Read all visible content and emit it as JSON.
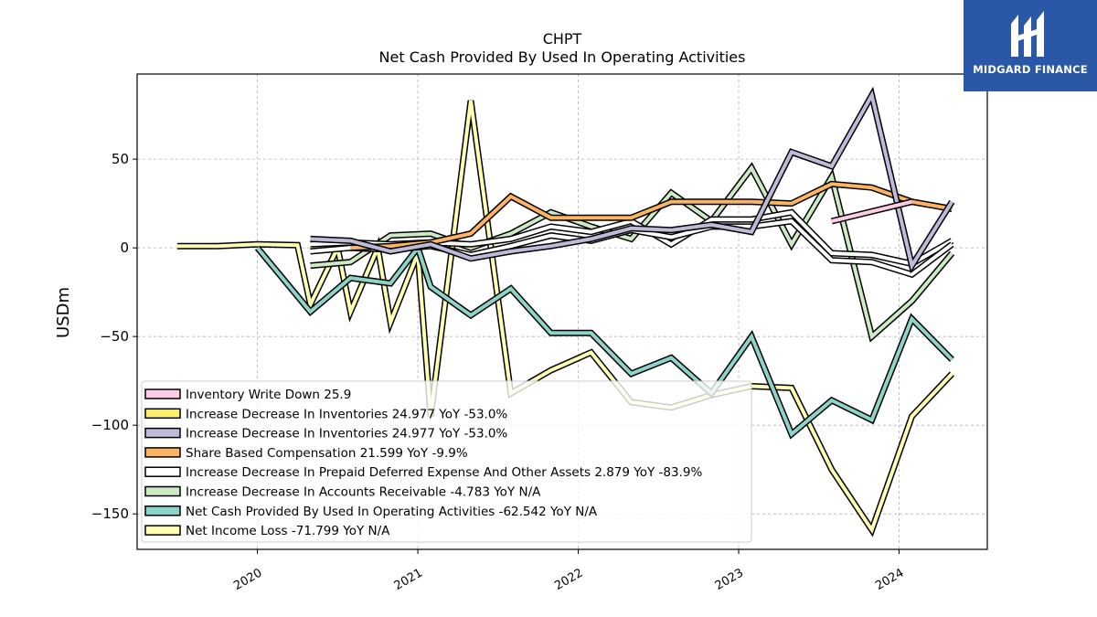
{
  "brand": {
    "name": "MIDGARD FINANCE",
    "background": "#2a57a6"
  },
  "chart_data": {
    "type": "line",
    "title": "CHPT",
    "subtitle": "Net Cash Provided By Used In Operating Activities",
    "xlabel": "",
    "ylabel": "USDm",
    "xlim": [
      2019.25,
      2024.55
    ],
    "ylim": [
      -170,
      98
    ],
    "x_ticks": [
      2020,
      2021,
      2022,
      2023,
      2024
    ],
    "x_tick_labels": [
      "2020",
      "2021",
      "2022",
      "2023",
      "2024"
    ],
    "y_ticks": [
      50,
      0,
      -50,
      -100,
      -150
    ],
    "y_tick_labels": [
      "50",
      "0",
      "−50",
      "−100",
      "−150"
    ],
    "grid": true,
    "legend_position": "lower-left",
    "series": [
      {
        "name": "Net Income Loss  -71.799 YoY N/A",
        "color": "#ffffb3",
        "points": [
          [
            2019.5,
            1
          ],
          [
            2019.75,
            1
          ],
          [
            2020.0,
            2
          ],
          [
            2020.25,
            1.5
          ],
          [
            2020.33,
            -32
          ],
          [
            2020.5,
            0
          ],
          [
            2020.58,
            -36
          ],
          [
            2020.75,
            0
          ],
          [
            2020.83,
            -42
          ],
          [
            2021.0,
            -3
          ],
          [
            2021.08,
            -95
          ],
          [
            2021.33,
            83
          ],
          [
            2021.58,
            -82
          ],
          [
            2021.83,
            -69
          ],
          [
            2022.08,
            -59
          ],
          [
            2022.33,
            -87
          ],
          [
            2022.58,
            -90
          ],
          [
            2022.83,
            -83
          ],
          [
            2023.08,
            -78
          ],
          [
            2023.33,
            -79
          ],
          [
            2023.58,
            -125
          ],
          [
            2023.83,
            -159
          ],
          [
            2024.08,
            -95
          ],
          [
            2024.33,
            -71
          ]
        ]
      },
      {
        "name": "Net Cash Provided By Used In Operating Activities  -62.542 YoY N/A",
        "color": "#8dd3c7",
        "points": [
          [
            2020.0,
            0
          ],
          [
            2020.33,
            -36
          ],
          [
            2020.58,
            -17
          ],
          [
            2020.83,
            -20
          ],
          [
            2021.0,
            0
          ],
          [
            2021.08,
            -22
          ],
          [
            2021.33,
            -38
          ],
          [
            2021.58,
            -23
          ],
          [
            2021.83,
            -48
          ],
          [
            2022.08,
            -48
          ],
          [
            2022.33,
            -71
          ],
          [
            2022.58,
            -62
          ],
          [
            2022.83,
            -82
          ],
          [
            2023.08,
            -50
          ],
          [
            2023.33,
            -105
          ],
          [
            2023.58,
            -86
          ],
          [
            2023.83,
            -97
          ],
          [
            2024.08,
            -40
          ],
          [
            2024.33,
            -63
          ]
        ]
      },
      {
        "name": "Increase Decrease In Accounts Receivable  -4.783 YoY N/A",
        "color": "#ccebc5",
        "points": [
          [
            2020.33,
            -10
          ],
          [
            2020.58,
            -8
          ],
          [
            2020.83,
            7
          ],
          [
            2021.08,
            8
          ],
          [
            2021.33,
            0
          ],
          [
            2021.58,
            8
          ],
          [
            2021.83,
            20
          ],
          [
            2022.08,
            12
          ],
          [
            2022.33,
            5
          ],
          [
            2022.58,
            31
          ],
          [
            2022.83,
            15
          ],
          [
            2023.08,
            45
          ],
          [
            2023.33,
            2
          ],
          [
            2023.58,
            40
          ],
          [
            2023.83,
            -50
          ],
          [
            2024.08,
            -30
          ],
          [
            2024.33,
            -3
          ]
        ]
      },
      {
        "name": "Increase Decrease In Prepaid Deferred Expense And Other Assets  2.879 YoY -83.9%",
        "color": "#ffffff",
        "points": [
          [
            2020.33,
            2
          ],
          [
            2020.58,
            3
          ],
          [
            2020.83,
            2
          ],
          [
            2021.08,
            3
          ],
          [
            2021.33,
            2
          ],
          [
            2021.58,
            5
          ],
          [
            2021.83,
            12
          ],
          [
            2022.08,
            9
          ],
          [
            2022.33,
            15
          ],
          [
            2022.58,
            2
          ],
          [
            2022.83,
            16
          ],
          [
            2023.08,
            16
          ],
          [
            2023.33,
            20
          ],
          [
            2023.58,
            -3
          ],
          [
            2023.83,
            -4
          ],
          [
            2024.08,
            -9
          ],
          [
            2024.33,
            4
          ]
        ]
      },
      {
        "name": "Increase Decrease In Prepaid Deferred Expense And Other Assets  2.879 YoY -83.9%",
        "color": "#ffffff",
        "points": [
          [
            2020.33,
            -2
          ],
          [
            2020.58,
            0
          ],
          [
            2020.83,
            -1
          ],
          [
            2021.08,
            1
          ],
          [
            2021.33,
            -4
          ],
          [
            2021.58,
            1
          ],
          [
            2021.83,
            7
          ],
          [
            2022.08,
            4
          ],
          [
            2022.33,
            10
          ],
          [
            2022.58,
            6
          ],
          [
            2022.83,
            12
          ],
          [
            2023.08,
            12
          ],
          [
            2023.33,
            15
          ],
          [
            2023.58,
            -7
          ],
          [
            2023.83,
            -8
          ],
          [
            2024.08,
            -15
          ],
          [
            2024.33,
            2
          ]
        ]
      },
      {
        "name": "Share Based Compensation  21.599 YoY -9.9%",
        "color": "#fdb462",
        "points": [
          [
            2020.58,
            0
          ],
          [
            2020.83,
            1
          ],
          [
            2021.08,
            3
          ],
          [
            2021.33,
            8
          ],
          [
            2021.58,
            29
          ],
          [
            2021.83,
            17
          ],
          [
            2022.08,
            17
          ],
          [
            2022.33,
            17
          ],
          [
            2022.58,
            26
          ],
          [
            2022.83,
            26
          ],
          [
            2023.08,
            26
          ],
          [
            2023.33,
            25
          ],
          [
            2023.58,
            36
          ],
          [
            2023.83,
            34
          ],
          [
            2024.08,
            26
          ],
          [
            2024.33,
            22
          ]
        ]
      },
      {
        "name": "Increase Decrease In Inventories  24.977 YoY -53.0%",
        "color": "#bebada",
        "points": [
          [
            2020.33,
            5
          ],
          [
            2020.58,
            4
          ],
          [
            2020.83,
            -2
          ],
          [
            2021.08,
            2
          ],
          [
            2021.33,
            -6
          ],
          [
            2021.58,
            -2
          ],
          [
            2021.83,
            1
          ],
          [
            2022.08,
            5
          ],
          [
            2022.33,
            11
          ],
          [
            2022.58,
            10
          ],
          [
            2022.83,
            13
          ],
          [
            2023.08,
            9
          ],
          [
            2023.33,
            54
          ],
          [
            2023.58,
            46
          ],
          [
            2023.83,
            86
          ],
          [
            2024.08,
            -10
          ],
          [
            2024.33,
            26
          ]
        ]
      },
      {
        "name": "Inventory Write Down  25.9",
        "color": "#fccde5",
        "points": [
          [
            2023.58,
            15
          ],
          [
            2024.08,
            26
          ]
        ]
      }
    ],
    "legend": [
      {
        "label": "Inventory Write Down  25.9",
        "color": "#fccde5"
      },
      {
        "label": "Increase Decrease In Inventories  24.977 YoY -53.0%",
        "color": "#ffed6f"
      },
      {
        "label": "Increase Decrease In Inventories  24.977 YoY -53.0%",
        "color": "#bebada"
      },
      {
        "label": "Share Based Compensation  21.599 YoY -9.9%",
        "color": "#fdb462"
      },
      {
        "label": "Increase Decrease In Prepaid Deferred Expense And Other Assets  2.879 YoY -83.9%",
        "color": "#ffffff"
      },
      {
        "label": "Increase Decrease In Accounts Receivable  -4.783 YoY N/A",
        "color": "#ccebc5"
      },
      {
        "label": "Net Cash Provided By Used In Operating Activities  -62.542 YoY N/A",
        "color": "#8dd3c7"
      },
      {
        "label": "Net Income Loss  -71.799 YoY N/A",
        "color": "#ffffb3"
      }
    ]
  }
}
